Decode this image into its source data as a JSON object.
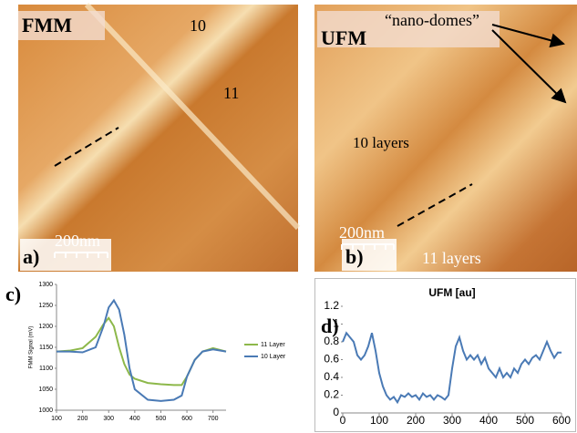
{
  "panels": {
    "a": {
      "mode": "FMM",
      "label_10": "10",
      "label_11": "11",
      "scale": "200nm",
      "letter": "a)"
    },
    "b": {
      "mode": "UFM",
      "annotation": "“nano-domes”",
      "layers_10": "10 layers",
      "scale": "200nm",
      "letter": "b)",
      "layers_11": "11 layers"
    },
    "c": {
      "letter": "c)"
    },
    "d": {
      "letter": "d)"
    }
  },
  "chart_data": [
    {
      "type": "line",
      "ylabel": "FMM Signal (mV)",
      "x": [
        100,
        150,
        200,
        250,
        280,
        300,
        320,
        340,
        360,
        380,
        400,
        450,
        500,
        550,
        580,
        600,
        630,
        660,
        700,
        750
      ],
      "series": [
        {
          "name": "11 Layer",
          "color": "#8db84a",
          "values": [
            1140,
            1142,
            1148,
            1175,
            1205,
            1220,
            1200,
            1150,
            1110,
            1085,
            1075,
            1065,
            1062,
            1060,
            1060,
            1080,
            1120,
            1140,
            1148,
            1140
          ]
        },
        {
          "name": "10 Layer",
          "color": "#4a7ab5",
          "values": [
            1140,
            1140,
            1138,
            1150,
            1200,
            1245,
            1262,
            1240,
            1180,
            1100,
            1050,
            1025,
            1022,
            1025,
            1035,
            1080,
            1120,
            1140,
            1145,
            1140
          ]
        }
      ],
      "xlim": [
        100,
        750
      ],
      "xticks": [
        100,
        200,
        300,
        400,
        500,
        600,
        700
      ],
      "ylim": [
        1000,
        1300
      ],
      "yticks": [
        1000,
        1050,
        1100,
        1150,
        1200,
        1250,
        1300
      ],
      "grid": false
    },
    {
      "type": "line",
      "title": "UFM [au]",
      "x": [
        0,
        10,
        20,
        30,
        40,
        50,
        60,
        70,
        80,
        90,
        100,
        110,
        120,
        130,
        140,
        150,
        160,
        170,
        180,
        190,
        200,
        210,
        220,
        230,
        240,
        250,
        260,
        270,
        280,
        290,
        300,
        310,
        320,
        330,
        340,
        350,
        360,
        370,
        380,
        390,
        400,
        410,
        420,
        430,
        440,
        450,
        460,
        470,
        480,
        490,
        500,
        510,
        520,
        530,
        540,
        550,
        560,
        570,
        580,
        590,
        600
      ],
      "series": [
        {
          "name": "UFM",
          "color": "#4a7ab5",
          "values": [
            0.8,
            0.9,
            0.85,
            0.8,
            0.65,
            0.6,
            0.65,
            0.75,
            0.9,
            0.7,
            0.45,
            0.3,
            0.2,
            0.15,
            0.18,
            0.12,
            0.2,
            0.18,
            0.22,
            0.18,
            0.2,
            0.15,
            0.22,
            0.18,
            0.2,
            0.15,
            0.2,
            0.18,
            0.15,
            0.2,
            0.5,
            0.75,
            0.85,
            0.7,
            0.6,
            0.65,
            0.6,
            0.65,
            0.55,
            0.62,
            0.5,
            0.45,
            0.4,
            0.5,
            0.4,
            0.45,
            0.4,
            0.5,
            0.45,
            0.55,
            0.6,
            0.55,
            0.62,
            0.65,
            0.6,
            0.7,
            0.8,
            0.7,
            0.62,
            0.68,
            0.68
          ]
        }
      ],
      "xlim": [
        0,
        600
      ],
      "xticks": [
        0,
        100,
        200,
        300,
        400,
        500,
        600
      ],
      "ylim": [
        0,
        1.2
      ],
      "yticks": [
        0,
        0.2,
        0.4,
        0.6,
        0.8,
        1,
        1.2
      ],
      "grid": false
    }
  ]
}
